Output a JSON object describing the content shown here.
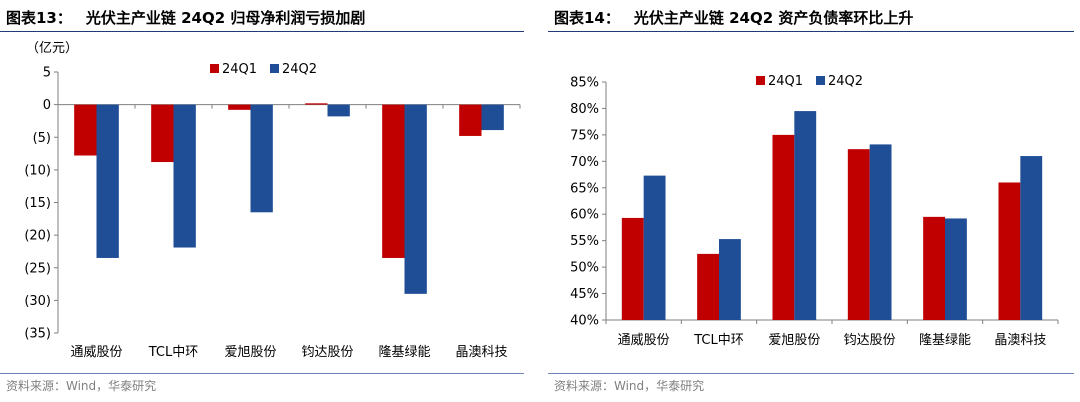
{
  "colors": {
    "q1": "#c00000",
    "q2": "#1f4e96",
    "axis": "#7f7f7f",
    "rule": "#1f3c74"
  },
  "left": {
    "fig_num": "图表13：",
    "title": "光伏主产业链 24Q2 归母净利润亏损加剧",
    "unit_label": "（亿元）",
    "source": "资料来源：Wind，华泰研究"
  },
  "right": {
    "fig_num": "图表14：",
    "title": "光伏主产业链 24Q2 资产负债率环比上升",
    "source": "资料来源：Wind，华泰研究"
  },
  "chart_data": [
    {
      "type": "bar",
      "title": "光伏主产业链 24Q2 归母净利润亏损加剧",
      "ylabel": "（亿元）",
      "ylim": [
        -35,
        5
      ],
      "yticks": [
        5,
        0,
        -5,
        -10,
        -15,
        -20,
        -25,
        -30,
        -35
      ],
      "ytick_labels": [
        "5",
        "0",
        "(5)",
        "(10)",
        "(15)",
        "(20)",
        "(25)",
        "(30)",
        "(35)"
      ],
      "categories": [
        "通威股份",
        "TCL中环",
        "爱旭股份",
        "钧达股份",
        "隆基绿能",
        "晶澳科技"
      ],
      "series": [
        {
          "name": "24Q1",
          "values": [
            -7.8,
            -8.8,
            -0.8,
            0.2,
            -23.5,
            -4.8
          ]
        },
        {
          "name": "24Q2",
          "values": [
            -23.5,
            -21.9,
            -16.5,
            -1.8,
            -29.0,
            -3.9
          ]
        }
      ],
      "legend": "top-center",
      "grid": false
    },
    {
      "type": "bar",
      "title": "光伏主产业链 24Q2 资产负债率环比上升",
      "ylim": [
        0.4,
        0.85
      ],
      "yticks": [
        0.4,
        0.45,
        0.5,
        0.55,
        0.6,
        0.65,
        0.7,
        0.75,
        0.8,
        0.85
      ],
      "ytick_labels": [
        "40%",
        "45%",
        "50%",
        "55%",
        "60%",
        "65%",
        "70%",
        "75%",
        "80%",
        "85%"
      ],
      "categories": [
        "通威股份",
        "TCL中环",
        "爱旭股份",
        "钧达股份",
        "隆基绿能",
        "晶澳科技"
      ],
      "series": [
        {
          "name": "24Q1",
          "values": [
            0.593,
            0.525,
            0.75,
            0.723,
            0.595,
            0.66
          ]
        },
        {
          "name": "24Q2",
          "values": [
            0.673,
            0.553,
            0.795,
            0.732,
            0.592,
            0.71
          ]
        }
      ],
      "legend": "top-center",
      "grid": false
    }
  ]
}
